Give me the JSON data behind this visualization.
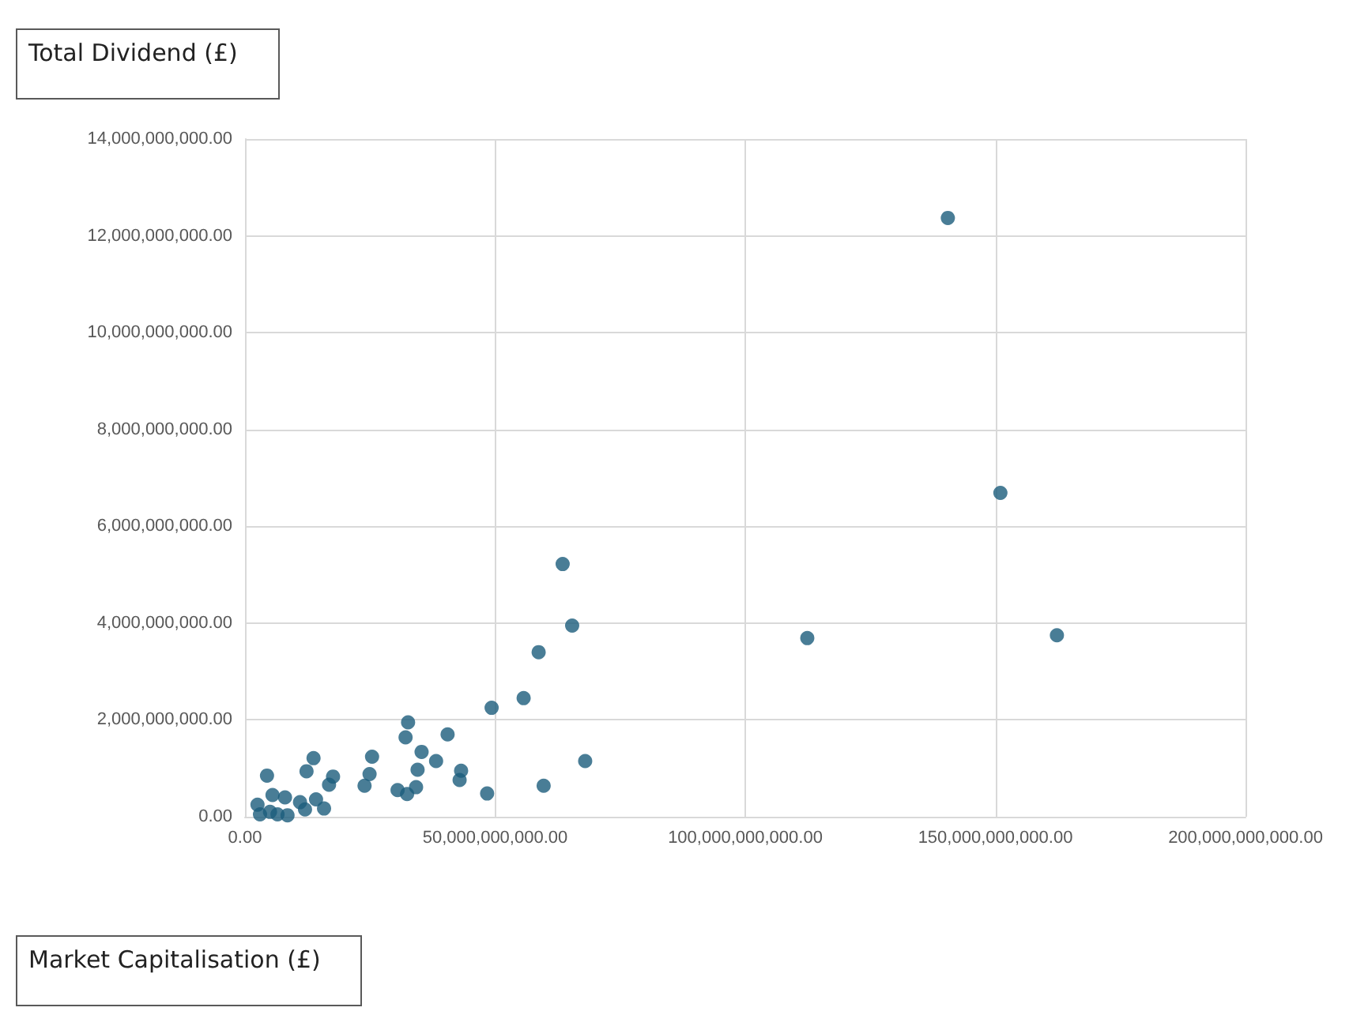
{
  "chart_data": {
    "type": "scatter",
    "ylabel": "Total Dividend (£)",
    "xlabel": "Market Capitalisation (£)",
    "color": "#1b5c7c",
    "marker": "circle",
    "grid": true,
    "xlim": [
      0,
      200000000000
    ],
    "xticks": [
      {
        "value": 0,
        "label": "0.00"
      },
      {
        "value": 50000000000,
        "label": "50,000,000,000.00"
      },
      {
        "value": 100000000000,
        "label": "100,000,000,000.00"
      },
      {
        "value": 150000000000,
        "label": "150,000,000,000.00"
      },
      {
        "value": 200000000000,
        "label": "200,000,000,000.00"
      }
    ],
    "ylim": [
      0,
      14000000000
    ],
    "yticks": [
      {
        "value": 0,
        "label": "0.00"
      },
      {
        "value": 2000000000,
        "label": "2,000,000,000.00"
      },
      {
        "value": 4000000000,
        "label": "4,000,000,000.00"
      },
      {
        "value": 6000000000,
        "label": "6,000,000,000.00"
      },
      {
        "value": 8000000000,
        "label": "8,000,000,000.00"
      },
      {
        "value": 10000000000,
        "label": "10,000,000,000.00"
      },
      {
        "value": 12000000000,
        "label": "12,000,000,000.00"
      },
      {
        "value": 14000000000,
        "label": "14,000,000,000.00"
      }
    ],
    "x": [
      140500000000,
      151000000000,
      162300000000,
      112400000000,
      63500000000,
      65400000000,
      58700000000,
      55700000000,
      49300000000,
      68000000000,
      59700000000,
      48400000000,
      32600000000,
      32100000000,
      40500000000,
      35300000000,
      38200000000,
      25400000000,
      24900000000,
      23900000000,
      34500000000,
      34200000000,
      32400000000,
      30500000000,
      43200000000,
      42900000000,
      13700000000,
      12300000000,
      17600000000,
      16800000000,
      14200000000,
      15800000000,
      4400000000,
      3000000000,
      5000000000,
      8000000000,
      11000000000,
      6500000000,
      12000000000,
      2500000000,
      8500000000,
      5500000000
    ],
    "values": [
      12370000000,
      6690000000,
      3750000000,
      3690000000,
      5220000000,
      3950000000,
      3400000000,
      2450000000,
      2250000000,
      1150000000,
      640000000,
      480000000,
      1950000000,
      1640000000,
      1700000000,
      1340000000,
      1150000000,
      1240000000,
      880000000,
      640000000,
      970000000,
      610000000,
      470000000,
      550000000,
      950000000,
      760000000,
      1210000000,
      940000000,
      830000000,
      660000000,
      360000000,
      170000000,
      850000000,
      50000000,
      100000000,
      400000000,
      300000000,
      50000000,
      150000000,
      250000000,
      30000000,
      450000000
    ]
  }
}
